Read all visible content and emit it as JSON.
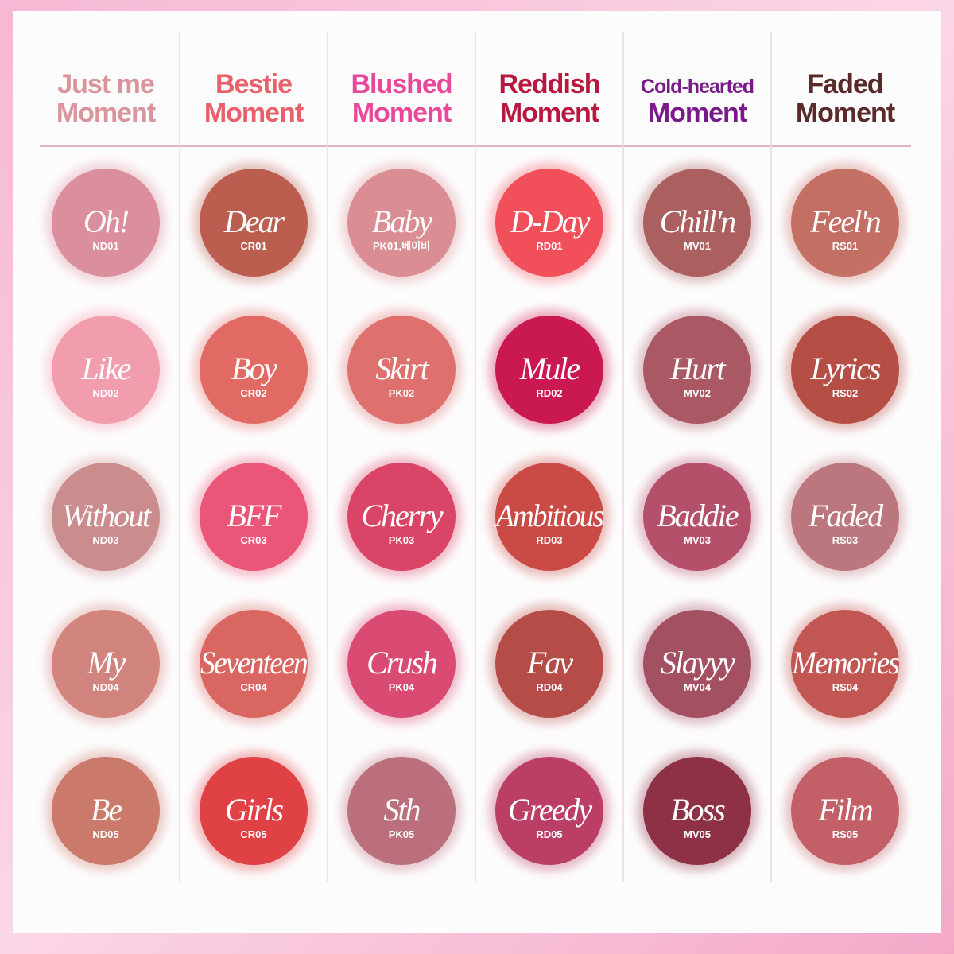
{
  "columns": [
    {
      "title": [
        "Just me",
        "Moment"
      ],
      "color": "#d9949c",
      "swatches": [
        {
          "name": "Oh!",
          "code": "ND01",
          "color": "#d98a9a"
        },
        {
          "name": "Like",
          "code": "ND02",
          "color": "#f09aaa"
        },
        {
          "name": "Without",
          "code": "ND03",
          "color": "#c88888"
        },
        {
          "name": "My",
          "code": "ND04",
          "color": "#d08078"
        },
        {
          "name": "Be",
          "code": "ND05",
          "color": "#c87466"
        }
      ]
    },
    {
      "title": [
        "Bestie",
        "Moment"
      ],
      "color": "#e8606a",
      "swatches": [
        {
          "name": "Dear",
          "code": "CR01",
          "color": "#b8584a"
        },
        {
          "name": "Boy",
          "code": "CR02",
          "color": "#e0655f"
        },
        {
          "name": "BFF",
          "code": "CR03",
          "color": "#ea4f72"
        },
        {
          "name": "Seventeen",
          "code": "CR04",
          "color": "#d8615c"
        },
        {
          "name": "Girls",
          "code": "CR05",
          "color": "#dd3a3e"
        }
      ]
    },
    {
      "title": [
        "Blushed",
        "Moment"
      ],
      "color": "#e8489a",
      "swatches": [
        {
          "name": "Baby",
          "code": "PK01,베이비",
          "color": "#d88a90"
        },
        {
          "name": "Skirt",
          "code": "PK02",
          "color": "#dc6c68"
        },
        {
          "name": "Cherry",
          "code": "PK03",
          "color": "#d83d62"
        },
        {
          "name": "Crush",
          "code": "PK04",
          "color": "#d8456e"
        },
        {
          "name": "Sth",
          "code": "PK05",
          "color": "#b86a78"
        }
      ]
    },
    {
      "title": [
        "Reddish",
        "Moment"
      ],
      "color": "#b8183f",
      "swatches": [
        {
          "name": "D-Day",
          "code": "RD01",
          "color": "#f04a55"
        },
        {
          "name": "Mule",
          "code": "RD02",
          "color": "#c8104a"
        },
        {
          "name": "Ambitious",
          "code": "RD03",
          "color": "#c8443e"
        },
        {
          "name": "Fav",
          "code": "RD04",
          "color": "#b24640"
        },
        {
          "name": "Greedy",
          "code": "RD05",
          "color": "#b83860"
        }
      ]
    },
    {
      "title": [
        "Cold-hearted",
        "Moment"
      ],
      "color": "#7a1a8a",
      "swatches": [
        {
          "name": "Chill'n",
          "code": "MV01",
          "color": "#a85a5a"
        },
        {
          "name": "Hurt",
          "code": "MV02",
          "color": "#a6525e"
        },
        {
          "name": "Baddie",
          "code": "MV03",
          "color": "#b24a66"
        },
        {
          "name": "Slayyy",
          "code": "MV04",
          "color": "#a04a5e"
        },
        {
          "name": "Boss",
          "code": "MV05",
          "color": "#8a2a40"
        }
      ]
    },
    {
      "title": [
        "Faded",
        "Moment"
      ],
      "color": "#5a2a2a",
      "swatches": [
        {
          "name": "Feel'n",
          "code": "RS01",
          "color": "#c26a5e"
        },
        {
          "name": "Lyrics",
          "code": "RS02",
          "color": "#b2483e"
        },
        {
          "name": "Faded",
          "code": "RS03",
          "color": "#b87278"
        },
        {
          "name": "Memories",
          "code": "RS04",
          "color": "#c0504c"
        },
        {
          "name": "Film",
          "code": "RS05",
          "color": "#c05a62"
        }
      ]
    }
  ]
}
